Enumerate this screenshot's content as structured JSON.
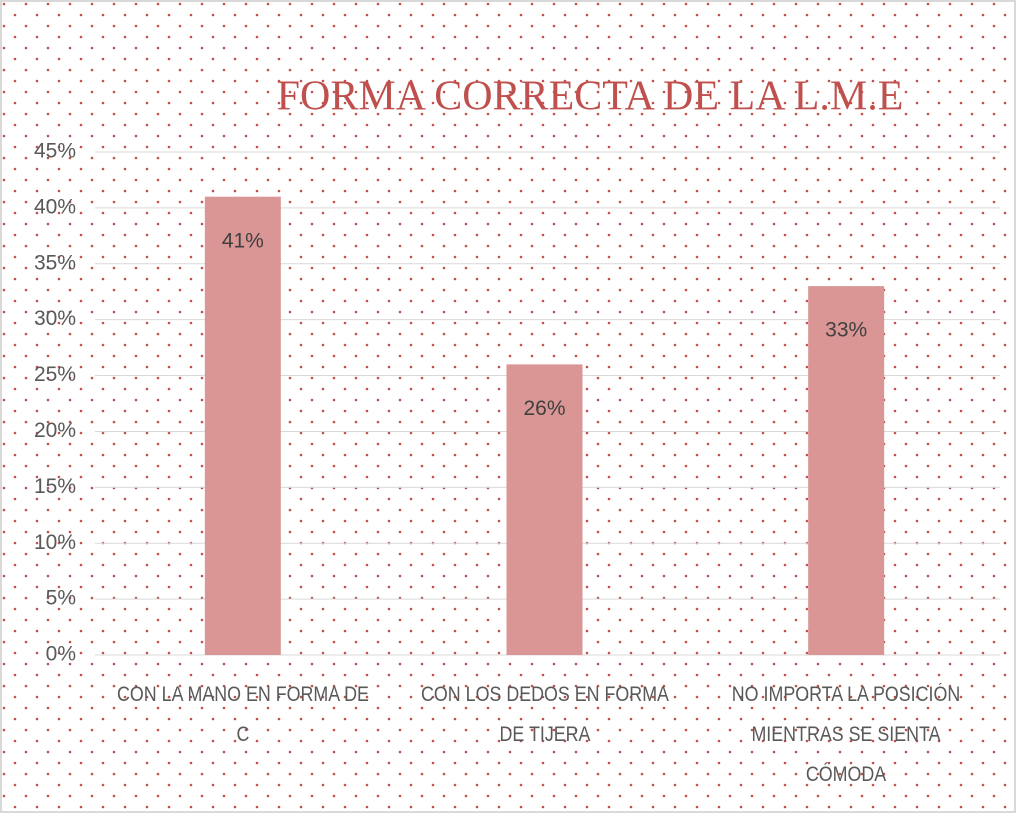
{
  "chart_data": {
    "type": "bar",
    "title": "FORMA CORRECTA DE LA L.M.E",
    "categories": [
      "CON LA MANO EN FORMA DE C",
      "CON LOS DEDOS EN FORMA DE TIJERA",
      "NO IMPORTA LA POSICIÓN MIENTRAS SE SIENTA CÓMODA"
    ],
    "values": [
      41,
      26,
      33
    ],
    "value_labels": [
      "41%",
      "26%",
      "33%"
    ],
    "color": "#d99694",
    "ylim": [
      0,
      45
    ],
    "yticks": [
      {
        "value": 0,
        "label": "0%"
      },
      {
        "value": 5,
        "label": "5%"
      },
      {
        "value": 10,
        "label": "10%"
      },
      {
        "value": 15,
        "label": "15%"
      },
      {
        "value": 20,
        "label": "20%"
      },
      {
        "value": 25,
        "label": "25%"
      },
      {
        "value": 30,
        "label": "30%"
      },
      {
        "value": 35,
        "label": "35%"
      },
      {
        "value": 40,
        "label": "40%"
      },
      {
        "value": 45,
        "label": "45%"
      }
    ],
    "grid": true
  }
}
